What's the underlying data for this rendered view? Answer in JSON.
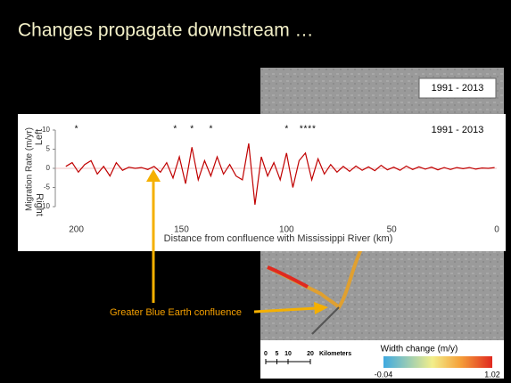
{
  "slide": {
    "title": "Changes propagate downstream …"
  },
  "chart_data": {
    "type": "line",
    "period_label": "1991 - 2013",
    "y_label": "Migration Rate (m/yr)",
    "y_label_top": "Left",
    "y_label_bottom": "Right",
    "x_label": "Distance from confluence with Mississippi River (km)",
    "xlim": [
      210,
      0
    ],
    "ylim": [
      -10,
      10
    ],
    "xticks": [
      200,
      150,
      100,
      50,
      0
    ],
    "yticks": [
      -10,
      -5,
      0,
      5,
      10
    ],
    "series": [
      {
        "color": "#c00000",
        "x": [
          205,
          202,
          199,
          196,
          193,
          190,
          187,
          184,
          181,
          178,
          175,
          172,
          169,
          166,
          163,
          160,
          157,
          154,
          151,
          148,
          145,
          142,
          139,
          136,
          133,
          130,
          127,
          124,
          121,
          118,
          115,
          112,
          109,
          106,
          103,
          100,
          97,
          94,
          91,
          88,
          85,
          82,
          79,
          76,
          73,
          70,
          67,
          64,
          61,
          58,
          55,
          52,
          49,
          46,
          43,
          40,
          37,
          34,
          31,
          28,
          25,
          22,
          19,
          16,
          13,
          10,
          7,
          4,
          1
        ],
        "values": [
          0.5,
          1.5,
          -1,
          1,
          2,
          -1.5,
          0.5,
          -2,
          1.5,
          -0.5,
          0.3,
          0,
          0.2,
          -0.3,
          0.5,
          -1,
          1.5,
          -2.5,
          3,
          -4,
          5.5,
          -3,
          2,
          -2,
          3,
          -1.5,
          1,
          -2,
          -3,
          6.5,
          -9.5,
          3,
          -2,
          1.5,
          -3,
          4,
          -5,
          2,
          4,
          -3,
          2.5,
          -1.5,
          1,
          -1,
          0.5,
          -0.8,
          0.6,
          -0.5,
          0.4,
          -0.6,
          0.8,
          -0.4,
          0.3,
          -0.5,
          0.6,
          -0.3,
          0.4,
          -0.2,
          0.3,
          -0.4,
          0.2,
          -0.3,
          0.2,
          -0.1,
          0.2,
          -0.2,
          0.1,
          0,
          0.2
        ]
      }
    ],
    "asterisk": "*",
    "asterisk_x": [
      200,
      153,
      145,
      136,
      100,
      93,
      91,
      89,
      87
    ]
  },
  "map": {
    "period_label": "1991 - 2013",
    "annotation": "Greater Blue Earth confluence",
    "scale": {
      "ticks": [
        0,
        5,
        10,
        20
      ],
      "unit": "Kilometers"
    },
    "legend_title": "Width change (m/y)",
    "legend_min": -0.04,
    "legend_max": 1.02
  }
}
